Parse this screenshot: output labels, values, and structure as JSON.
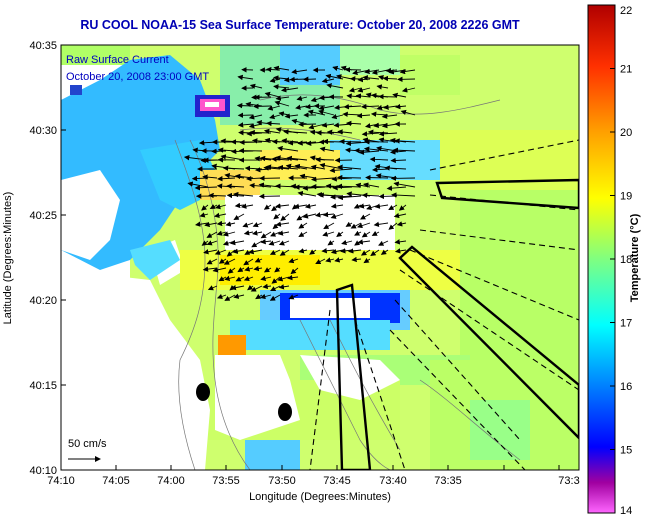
{
  "title": "RU COOL  NOAA-15  Sea Surface Temperature:  October 20, 2008 2226 GMT",
  "legend": {
    "line1": "Raw Surface Current",
    "line2": "October 20, 2008 23:00 GMT"
  },
  "scale_label": "50 cm/s",
  "axes": {
    "xlabel": "Longitude (Degrees:Minutes)",
    "ylabel": "Latitude (Degrees:Minutes)",
    "x_ticks": [
      "74:10",
      "74:05",
      "74:00",
      "73:55",
      "73:50",
      "73:45",
      "73:40",
      "73:35",
      "73:3"
    ],
    "y_ticks": [
      "40:35",
      "40:30",
      "40:25",
      "40:20",
      "40:15",
      "40:10"
    ]
  },
  "colorbar": {
    "title": "Temperature (°C)",
    "ticks": [
      "22",
      "21",
      "20",
      "19",
      "18",
      "17",
      "16",
      "15",
      "14"
    ],
    "min": 14,
    "max": 22,
    "stops": [
      "#ff66ff",
      "#a000a0",
      "#0000ff",
      "#00b4ff",
      "#00ffff",
      "#b4ff5a",
      "#ffff00",
      "#ffa000",
      "#ff4000",
      "#c00000"
    ]
  }
}
